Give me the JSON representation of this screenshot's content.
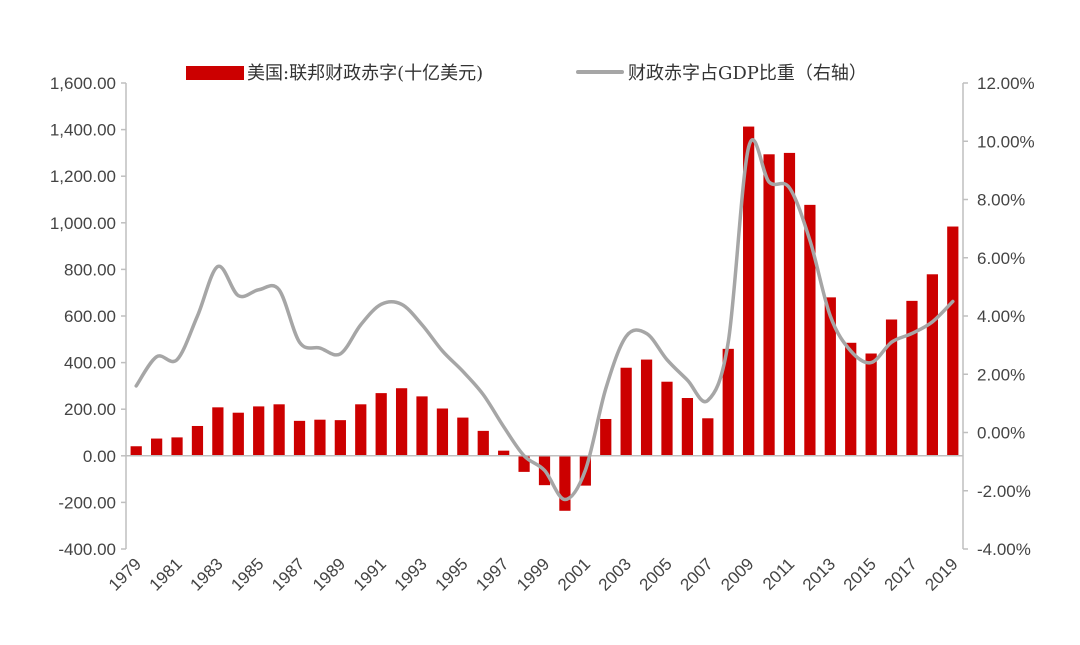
{
  "chart_data": {
    "type": "bar",
    "legend_position": "top",
    "grid": false,
    "x": [
      1979,
      1980,
      1981,
      1982,
      1983,
      1984,
      1985,
      1986,
      1987,
      1988,
      1989,
      1990,
      1991,
      1992,
      1993,
      1994,
      1995,
      1996,
      1997,
      1998,
      1999,
      2000,
      2001,
      2002,
      2003,
      2004,
      2005,
      2006,
      2007,
      2008,
      2009,
      2010,
      2011,
      2012,
      2013,
      2014,
      2015,
      2016,
      2017,
      2018,
      2019
    ],
    "x_tick_labels": [
      "1979",
      "1981",
      "1983",
      "1985",
      "1987",
      "1989",
      "1991",
      "1993",
      "1995",
      "1997",
      "1999",
      "2001",
      "2003",
      "2005",
      "2007",
      "2009",
      "2011",
      "2013",
      "2015",
      "2017",
      "2019"
    ],
    "y_left": {
      "range": [
        -400,
        1600
      ],
      "ticks": [
        "-400.00",
        "-200.00",
        "0.00",
        "200.00",
        "400.00",
        "600.00",
        "800.00",
        "1,000.00",
        "1,200.00",
        "1,400.00",
        "1,600.00"
      ]
    },
    "y_right": {
      "range": [
        -4,
        12
      ],
      "ticks": [
        "-4.00%",
        "-2.00%",
        "0.00%",
        "2.00%",
        "4.00%",
        "6.00%",
        "8.00%",
        "10.00%",
        "12.00%"
      ]
    },
    "series": [
      {
        "name": "美国:联邦财政赤字(十亿美元)",
        "type": "bar",
        "axis": "left",
        "color": "#cc0000",
        "values": [
          41,
          74,
          79,
          128,
          208,
          185,
          212,
          221,
          150,
          155,
          153,
          221,
          269,
          290,
          255,
          203,
          164,
          107,
          22,
          -69,
          -126,
          -236,
          -128,
          158,
          378,
          413,
          318,
          248,
          161,
          459,
          1413,
          1294,
          1300,
          1077,
          680,
          485,
          439,
          585,
          665,
          779,
          984
        ]
      },
      {
        "name": "财政赤字占GDP比重（右轴）",
        "type": "line",
        "axis": "right",
        "color": "#a6a6a6",
        "values": [
          1.6,
          2.6,
          2.5,
          4.0,
          5.7,
          4.7,
          4.9,
          4.9,
          3.1,
          2.9,
          2.7,
          3.7,
          4.4,
          4.4,
          3.7,
          2.8,
          2.1,
          1.3,
          0.2,
          -0.8,
          -1.3,
          -2.3,
          -1.3,
          1.5,
          3.3,
          3.4,
          2.5,
          1.8,
          1.1,
          3.1,
          9.8,
          8.6,
          8.4,
          6.6,
          4.0,
          2.8,
          2.4,
          3.1,
          3.4,
          3.8,
          4.5
        ]
      }
    ]
  }
}
